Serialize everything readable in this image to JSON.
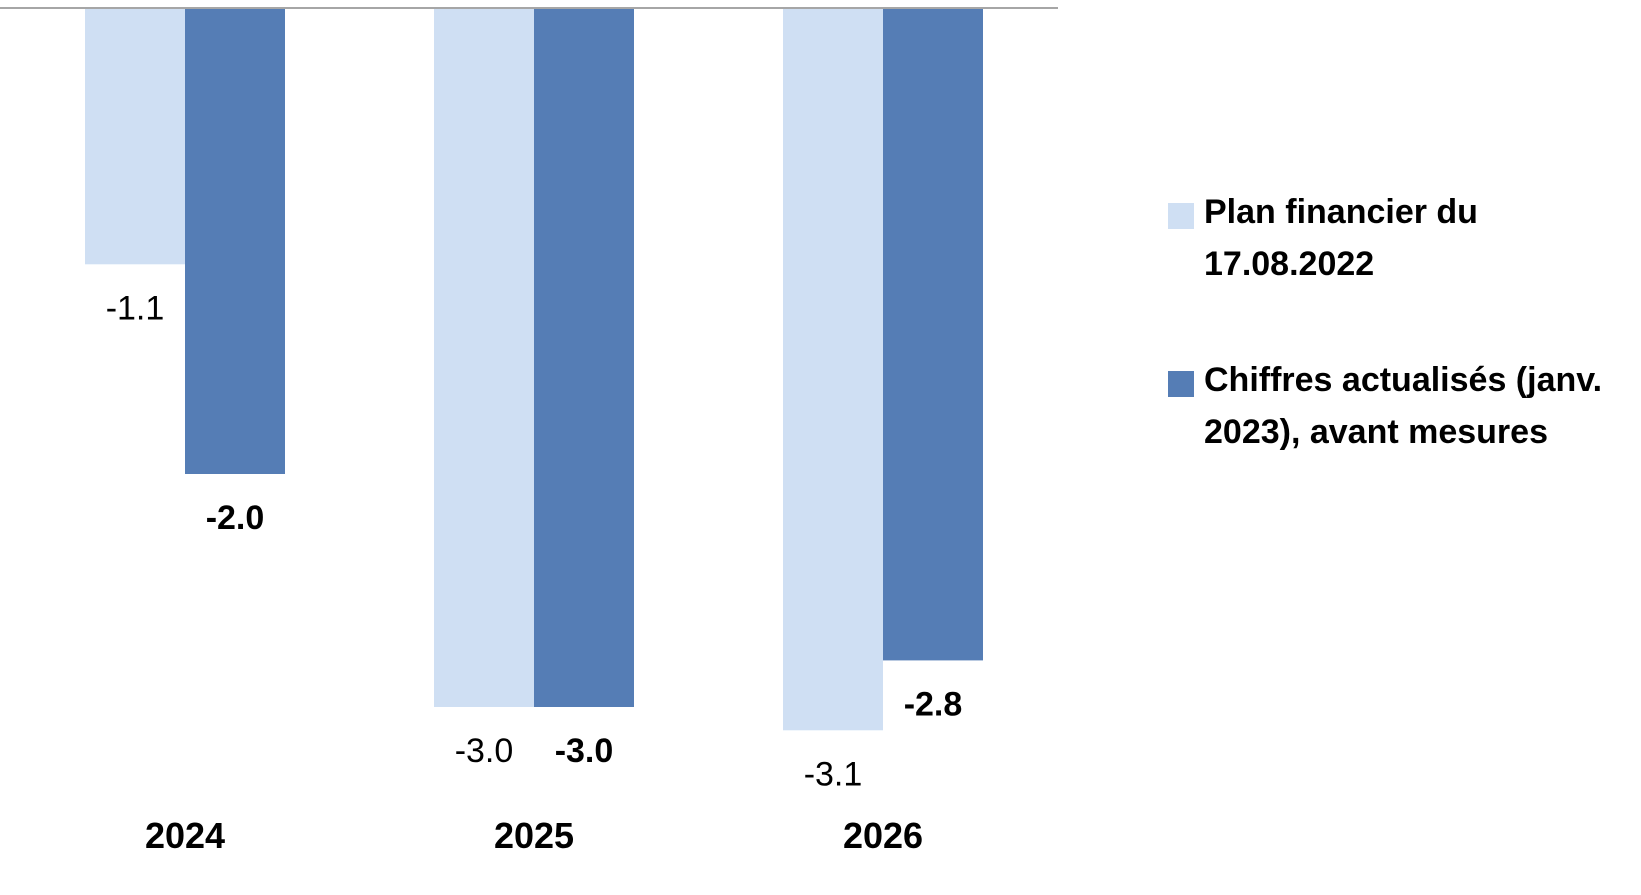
{
  "chart_data": {
    "type": "bar",
    "categories": [
      "2024",
      "2025",
      "2026"
    ],
    "series": [
      {
        "name": "Plan financier du 17.08.2022",
        "values": [
          -1.1,
          -3.0,
          -3.1
        ],
        "labels": [
          "-1.1",
          "-3.0",
          "-3.1"
        ],
        "color": "#cfdff3",
        "label_weight": "normal"
      },
      {
        "name": "Chiffres actualisés (janv. 2023), avant mesures",
        "values": [
          -2.0,
          -3.0,
          -2.8
        ],
        "labels": [
          "-2.0",
          "-3.0",
          "-2.8"
        ],
        "color": "#557db5",
        "label_weight": "bold"
      }
    ],
    "ylim": [
      -3.1,
      0
    ],
    "grid": false,
    "legend_position": "right",
    "axis_color": "#a6a6a6"
  },
  "legend": {
    "items": [
      {
        "label": "Plan financier du 17.08.2022",
        "color": "#cfdff3"
      },
      {
        "label": "Chiffres actualisés (janv. 2023), avant mesures",
        "color": "#557db5"
      }
    ]
  }
}
